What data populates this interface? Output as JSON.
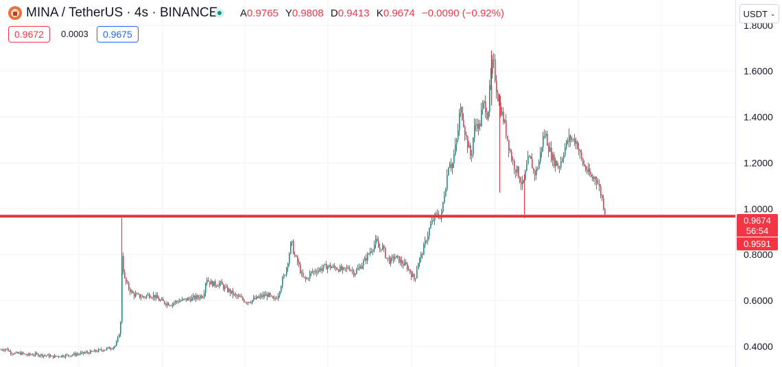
{
  "header": {
    "symbol": "MINA / TetherUS · 4s · BINANCE",
    "ohlc": [
      {
        "key": "A",
        "value": "0.9765"
      },
      {
        "key": "Y",
        "value": "0.9808"
      },
      {
        "key": "D",
        "value": "0.9413"
      },
      {
        "key": "K",
        "value": "0.9674"
      }
    ],
    "change": "−0.0090 (−0.92%)"
  },
  "quote": {
    "sell": "0.9672",
    "spread": "0.0003",
    "buy": "0.9675"
  },
  "currency": {
    "label": "USDT"
  },
  "colors": {
    "up": "#089981",
    "down": "#f23645",
    "line": "#e03640",
    "grid": "#f0f3fa",
    "buy": "#2962ff"
  },
  "chart_data": {
    "type": "candlestick",
    "y_ticks": [
      "0.4000",
      "0.6000",
      "0.8000",
      "1.0000",
      "1.2000",
      "1.4000",
      "1.6000",
      "1.8000"
    ],
    "ylim": [
      0.31,
      1.91
    ],
    "grid": true,
    "current_price": {
      "value": 0.9674,
      "label": "0.9674",
      "countdown": "56:54"
    },
    "low_price": {
      "value": 0.9591,
      "label": "0.9591"
    },
    "series_path": [
      [
        0,
        0.385
      ],
      [
        8,
        0.39
      ],
      [
        14,
        0.375
      ],
      [
        22,
        0.368
      ],
      [
        30,
        0.37
      ],
      [
        38,
        0.362
      ],
      [
        46,
        0.365
      ],
      [
        52,
        0.365
      ],
      [
        60,
        0.362
      ],
      [
        68,
        0.36
      ],
      [
        76,
        0.355
      ],
      [
        84,
        0.358
      ],
      [
        92,
        0.36
      ],
      [
        100,
        0.362
      ],
      [
        108,
        0.365
      ],
      [
        116,
        0.368
      ],
      [
        124,
        0.372
      ],
      [
        132,
        0.375
      ],
      [
        140,
        0.38
      ],
      [
        148,
        0.385
      ],
      [
        156,
        0.39
      ],
      [
        162,
        0.395
      ],
      [
        168,
        0.405
      ],
      [
        172,
        0.44
      ],
      [
        175,
        0.5
      ],
      [
        177,
        0.8
      ],
      [
        180,
        0.7
      ],
      [
        184,
        0.67
      ],
      [
        188,
        0.65
      ],
      [
        192,
        0.63
      ],
      [
        200,
        0.62
      ],
      [
        208,
        0.615
      ],
      [
        216,
        0.625
      ],
      [
        224,
        0.62
      ],
      [
        232,
        0.6
      ],
      [
        240,
        0.59
      ],
      [
        248,
        0.585
      ],
      [
        256,
        0.595
      ],
      [
        264,
        0.6
      ],
      [
        272,
        0.605
      ],
      [
        280,
        0.61
      ],
      [
        288,
        0.615
      ],
      [
        296,
        0.625
      ],
      [
        300,
        0.7
      ],
      [
        304,
        0.68
      ],
      [
        312,
        0.67
      ],
      [
        320,
        0.675
      ],
      [
        326,
        0.655
      ],
      [
        334,
        0.64
      ],
      [
        342,
        0.62
      ],
      [
        350,
        0.61
      ],
      [
        358,
        0.595
      ],
      [
        366,
        0.6
      ],
      [
        374,
        0.61
      ],
      [
        382,
        0.62
      ],
      [
        390,
        0.625
      ],
      [
        398,
        0.6
      ],
      [
        404,
        0.62
      ],
      [
        410,
        0.68
      ],
      [
        416,
        0.73
      ],
      [
        420,
        0.79
      ],
      [
        424,
        0.86
      ],
      [
        428,
        0.8
      ],
      [
        434,
        0.76
      ],
      [
        440,
        0.7
      ],
      [
        446,
        0.69
      ],
      [
        452,
        0.72
      ],
      [
        460,
        0.73
      ],
      [
        468,
        0.74
      ],
      [
        476,
        0.75
      ],
      [
        484,
        0.745
      ],
      [
        492,
        0.74
      ],
      [
        500,
        0.73
      ],
      [
        508,
        0.745
      ],
      [
        516,
        0.72
      ],
      [
        522,
        0.74
      ],
      [
        530,
        0.77
      ],
      [
        536,
        0.8
      ],
      [
        542,
        0.83
      ],
      [
        548,
        0.86
      ],
      [
        552,
        0.82
      ],
      [
        556,
        0.84
      ],
      [
        562,
        0.79
      ],
      [
        568,
        0.77
      ],
      [
        574,
        0.79
      ],
      [
        580,
        0.78
      ],
      [
        586,
        0.76
      ],
      [
        592,
        0.75
      ],
      [
        598,
        0.72
      ],
      [
        604,
        0.69
      ],
      [
        608,
        0.76
      ],
      [
        614,
        0.8
      ],
      [
        620,
        0.86
      ],
      [
        626,
        0.92
      ],
      [
        632,
        0.96
      ],
      [
        638,
        0.98
      ],
      [
        642,
        0.95
      ],
      [
        646,
        1.05
      ],
      [
        650,
        1.12
      ],
      [
        654,
        1.22
      ],
      [
        658,
        1.18
      ],
      [
        662,
        1.25
      ],
      [
        666,
        1.31
      ],
      [
        670,
        1.44
      ],
      [
        674,
        1.4
      ],
      [
        678,
        1.32
      ],
      [
        682,
        1.27
      ],
      [
        686,
        1.22
      ],
      [
        690,
        1.34
      ],
      [
        694,
        1.38
      ],
      [
        698,
        1.35
      ],
      [
        702,
        1.44
      ],
      [
        706,
        1.46
      ],
      [
        710,
        1.4
      ],
      [
        714,
        1.55
      ],
      [
        718,
        1.65
      ],
      [
        722,
        1.55
      ],
      [
        726,
        1.47
      ],
      [
        730,
        1.42
      ],
      [
        734,
        1.38
      ],
      [
        738,
        1.32
      ],
      [
        742,
        1.26
      ],
      [
        746,
        1.21
      ],
      [
        750,
        1.18
      ],
      [
        754,
        1.16
      ],
      [
        758,
        1.12
      ],
      [
        762,
        1.1
      ],
      [
        766,
        1.17
      ],
      [
        770,
        1.22
      ],
      [
        774,
        1.2
      ],
      [
        778,
        1.15
      ],
      [
        782,
        1.17
      ],
      [
        786,
        1.22
      ],
      [
        790,
        1.3
      ],
      [
        794,
        1.33
      ],
      [
        798,
        1.28
      ],
      [
        802,
        1.24
      ],
      [
        806,
        1.21
      ],
      [
        810,
        1.2
      ],
      [
        814,
        1.18
      ],
      [
        818,
        1.22
      ],
      [
        822,
        1.26
      ],
      [
        826,
        1.29
      ],
      [
        830,
        1.31
      ],
      [
        834,
        1.3
      ],
      [
        838,
        1.3
      ],
      [
        842,
        1.27
      ],
      [
        846,
        1.22
      ],
      [
        850,
        1.19
      ],
      [
        854,
        1.17
      ],
      [
        858,
        1.15
      ],
      [
        862,
        1.13
      ],
      [
        866,
        1.14
      ],
      [
        870,
        1.12
      ],
      [
        874,
        1.08
      ],
      [
        878,
        1.03
      ],
      [
        882,
        0.97
      ]
    ]
  }
}
